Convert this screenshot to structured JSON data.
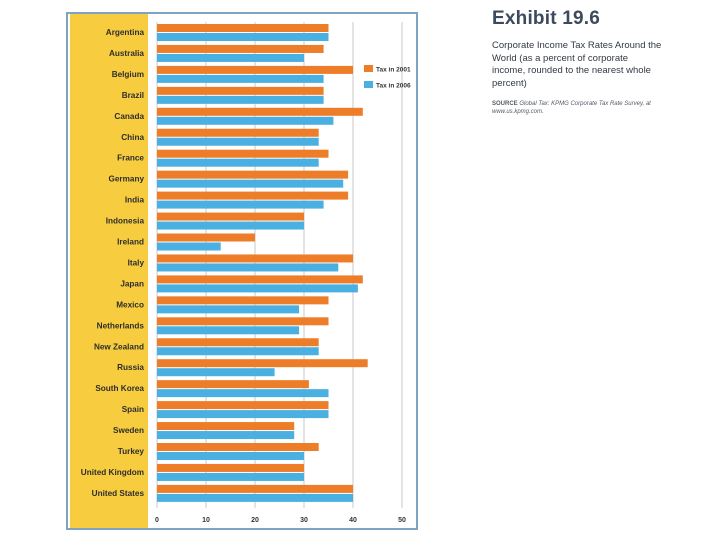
{
  "exhibit": {
    "title": "Exhibit 19.6",
    "caption": "Corporate Income Tax Rates Around the World (as a percent of corporate income, rounded to the nearest whole percent)",
    "source_label": "SOURCE",
    "source_text": "Global Tax: KPMG Corporate Tax Rate Survey, at www.us.kpmg.com."
  },
  "colors": {
    "panel": "#f7cd3f",
    "series_2001": "#ee7d2a",
    "series_2006": "#4ab0e2",
    "grid": "#bcbcbc",
    "frame": "#7fa4c3"
  },
  "chart_data": {
    "type": "bar",
    "orientation": "horizontal",
    "title": "Corporate Income Tax Rates Around the World",
    "xlabel": "",
    "ylabel": "",
    "xlim": [
      0,
      50
    ],
    "xticks": [
      0,
      10,
      20,
      30,
      40,
      50
    ],
    "grid": true,
    "legend_position": "top-right",
    "categories": [
      "Argentina",
      "Australia",
      "Belgium",
      "Brazil",
      "Canada",
      "China",
      "France",
      "Germany",
      "India",
      "Indonesia",
      "Ireland",
      "Italy",
      "Japan",
      "Mexico",
      "Netherlands",
      "New Zealand",
      "Russia",
      "South Korea",
      "Spain",
      "Sweden",
      "Turkey",
      "United Kingdom",
      "United States"
    ],
    "series": [
      {
        "name": "Tax in 2001",
        "color": "#ee7d2a",
        "values": [
          35,
          34,
          40,
          34,
          42,
          33,
          35,
          39,
          39,
          30,
          20,
          40,
          42,
          35,
          35,
          33,
          43,
          31,
          35,
          28,
          33,
          30,
          40
        ]
      },
      {
        "name": "Tax in 2006",
        "color": "#4ab0e2",
        "values": [
          35,
          30,
          34,
          34,
          36,
          33,
          33,
          38,
          34,
          30,
          13,
          37,
          41,
          29,
          29,
          33,
          24,
          35,
          35,
          28,
          30,
          30,
          40
        ]
      }
    ]
  }
}
